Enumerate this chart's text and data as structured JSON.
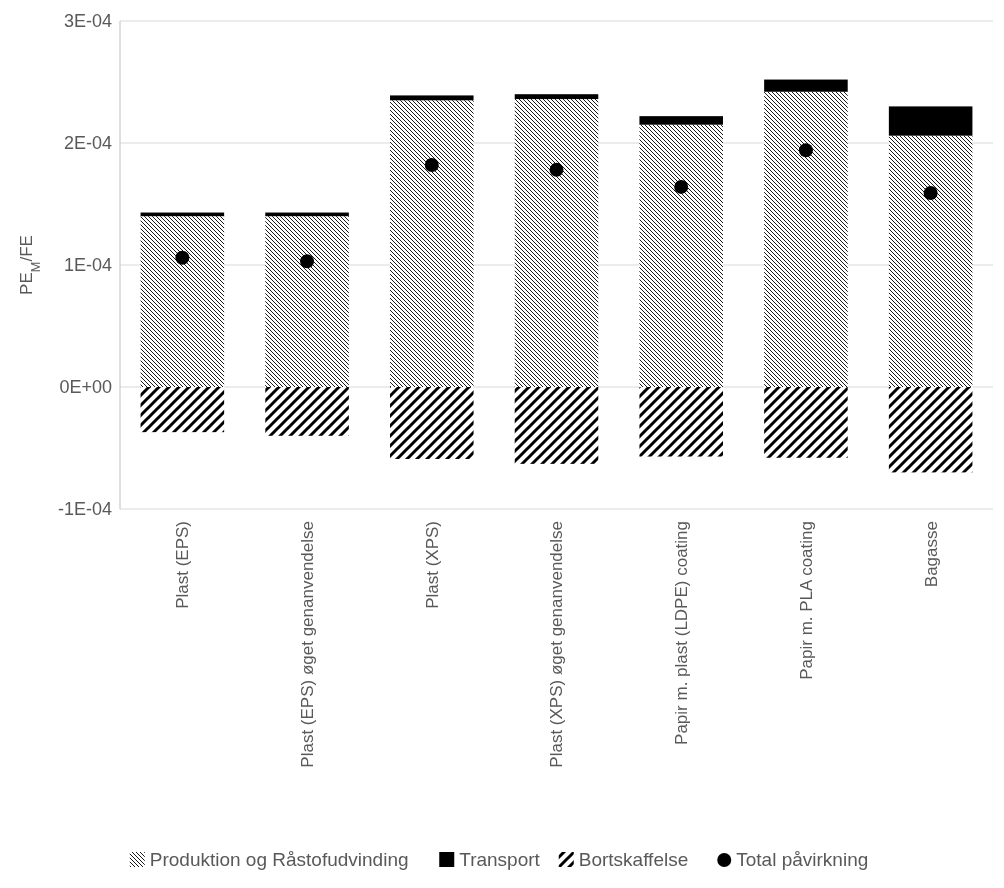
{
  "chart_data": {
    "type": "bar",
    "stacked": true,
    "ylabel": "PE$_{M}$/FE",
    "categories": [
      "Plast (EPS)",
      "Plast (EPS) øget genanvendelse",
      "Plast (XPS)",
      "Plast (XPS) øget genanvendelse",
      "Papir m. plast (LDPE) coating",
      "Papir m. PLA coating",
      "Bagasse"
    ],
    "series": [
      {
        "name": "Produktion og Råstofudvinding",
        "color": "#000000",
        "values": [
          0.00014,
          0.00014,
          0.000235,
          0.000236,
          0.000215,
          0.000242,
          0.000206
        ]
      },
      {
        "name": "Transport",
        "color": "#000000",
        "values": [
          3e-06,
          3e-06,
          4e-06,
          4e-06,
          7e-06,
          1e-05,
          2.4e-05
        ]
      },
      {
        "name": "Bortskaffelse",
        "color": "#000000",
        "values": [
          -3.7e-05,
          -4e-05,
          -5.9e-05,
          -6.3e-05,
          -5.7e-05,
          -5.8e-05,
          -7e-05
        ]
      },
      {
        "name": "Total påvirkning",
        "type": "scatter",
        "color": "#000000",
        "x": [
          "Plast (EPS)",
          "Plast (EPS) øget genanvendelse",
          "Plast (XPS)",
          "Plast (XPS) øget genanvendelse",
          "Papir m. plast (LDPE) coating",
          "Papir m. PLA coating",
          "Bagasse"
        ],
        "values": [
          0.000106,
          0.000103,
          0.000182,
          0.000178,
          0.000164,
          0.000194,
          0.000159
        ]
      }
    ],
    "ylim": [
      -0.0001,
      0.0003
    ],
    "yticks": [
      {
        "value": -0.0001,
        "label": "-1E-04"
      },
      {
        "value": 0,
        "label": "0E+00"
      },
      {
        "value": 0.0001,
        "label": "1E-04"
      },
      {
        "value": 0.0002,
        "label": "2E-04"
      },
      {
        "value": 0.0003,
        "label": "3E-04"
      }
    ],
    "grid": "y",
    "legend": "bottom",
    "marker": "circle"
  }
}
